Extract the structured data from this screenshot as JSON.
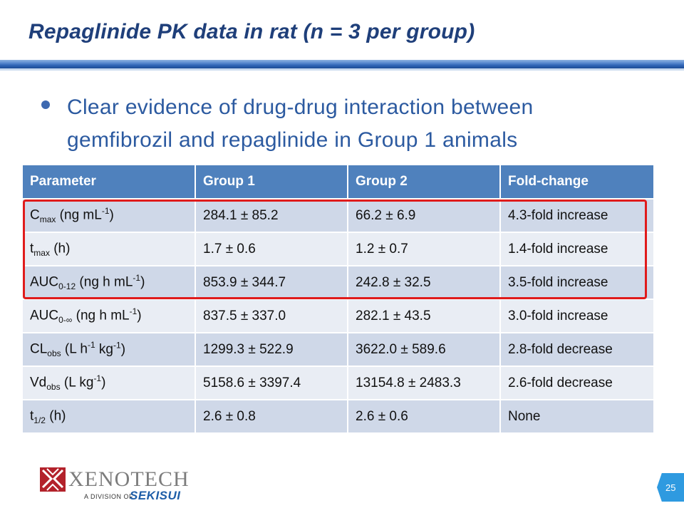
{
  "slide": {
    "title": "Repaglinide PK data in rat (n = 3 per group)",
    "bullet": "Clear evidence of drug-drug interaction between gemfibrozil and repaglinide in Group 1 animals",
    "page_number": "25"
  },
  "table": {
    "headers": [
      "Parameter",
      "Group 1",
      "Group 2",
      "Fold-change"
    ],
    "rows": [
      {
        "param_main": "C",
        "param_sub": "max",
        "param_pre": " (ng mL",
        "param_sup": "-1",
        "param_post": ")",
        "group1": "284.1 ± 85.2",
        "group2": "66.2 ± 6.9",
        "fold": "4.3-fold increase"
      },
      {
        "param_main": "t",
        "param_sub": "max",
        "param_pre": " (h)",
        "param_sup": "",
        "param_post": "",
        "group1": "1.7 ± 0.6",
        "group2": "1.2 ± 0.7",
        "fold": "1.4-fold increase"
      },
      {
        "param_main": "AUC",
        "param_sub": "0-12",
        "param_pre": " (ng h mL",
        "param_sup": "-1",
        "param_post": ")",
        "group1": "853.9 ± 344.7",
        "group2": "242.8 ± 32.5",
        "fold": "3.5-fold increase"
      },
      {
        "param_main": "AUC",
        "param_sub": "0-∞",
        "param_pre": " (ng h mL",
        "param_sup": "-1",
        "param_post": ")",
        "group1": "837.5 ± 337.0",
        "group2": "282.1 ± 43.5",
        "fold": "3.0-fold increase"
      },
      {
        "param_main": "CL",
        "param_sub": "obs",
        "param_pre": " (L h",
        "param_sup": "-1",
        "param_post": " kg-1)",
        "group1": "1299.3 ± 522.9",
        "group2": "3622.0 ± 589.6",
        "fold": "2.8-fold decrease"
      },
      {
        "param_main": "Vd",
        "param_sub": "obs",
        "param_pre": " (L kg",
        "param_sup": "-1",
        "param_post": ")",
        "group1": "5158.6 ± 3397.4",
        "group2": "13154.8 ± 2483.3",
        "fold": "2.6-fold decrease"
      },
      {
        "param_main": "t",
        "param_sub": "1/2",
        "param_pre": " (h)",
        "param_sup": "",
        "param_post": "",
        "group1": "2.6 ± 0.8",
        "group2": "2.6 ± 0.6",
        "fold": "None"
      }
    ]
  },
  "logo": {
    "name": "XENOTECH",
    "division": "A DIVISION OF",
    "parent": "SEKISUI"
  },
  "colors": {
    "title": "#1f3f7a",
    "header_bg": "#4f81bd",
    "row_even": "#cfd8e8",
    "row_odd": "#e9edf4",
    "highlight": "#e01b1b"
  }
}
